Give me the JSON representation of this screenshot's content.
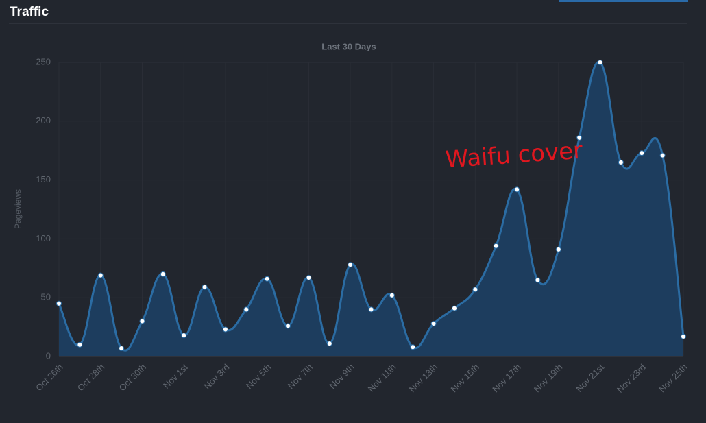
{
  "header": {
    "title": "Traffic"
  },
  "chart_data": {
    "type": "area-spline",
    "title": "Last 30 Days",
    "y_label": "Pageviews",
    "categories": [
      "Oct 26th",
      null,
      "Oct 28th",
      null,
      "Oct 30th",
      null,
      "Nov 1st",
      null,
      "Nov 3rd",
      null,
      "Nov 5th",
      null,
      "Nov 7th",
      null,
      "Nov 9th",
      null,
      "Nov 11th",
      null,
      "Nov 13th",
      null,
      "Nov 15th",
      null,
      "Nov 17th",
      null,
      "Nov 19th",
      null,
      "Nov 21st",
      null,
      "Nov 23rd",
      null,
      "Nov 25th"
    ],
    "values": [
      45,
      10,
      69,
      7,
      30,
      70,
      18,
      59,
      23,
      40,
      66,
      26,
      67,
      11,
      78,
      40,
      52,
      8,
      28,
      41,
      57,
      94,
      142,
      65,
      91,
      186,
      250,
      165,
      173,
      171,
      17
    ],
    "color": "#2b6ca3",
    "fill": "#1d3d5e",
    "ylim": [
      0,
      250
    ],
    "yticks": [
      0,
      50,
      100,
      150,
      200,
      250
    ],
    "grid": true,
    "annotation": "Waifu cover"
  }
}
